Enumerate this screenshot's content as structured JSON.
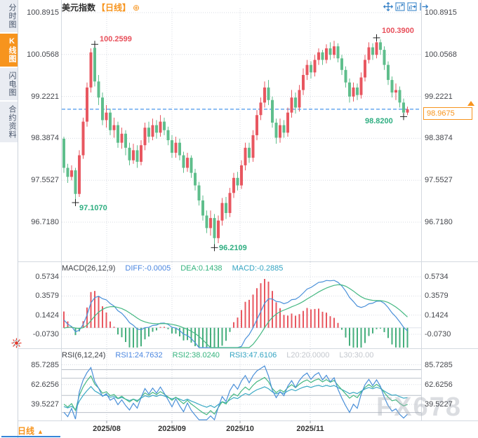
{
  "header": {
    "title": "美元指数",
    "timeframe": "【日线】",
    "add_icon": "⊕"
  },
  "sidebar": {
    "items": [
      {
        "label": "分时图",
        "active": false
      },
      {
        "label": "K线图",
        "active": true
      },
      {
        "label": "闪电图",
        "active": false
      },
      {
        "label": "合约资料",
        "active": false
      }
    ]
  },
  "toolbar": {
    "icons": [
      "crosshair",
      "fit-range",
      "pan-range",
      "go-latest"
    ]
  },
  "price_axis": {
    "labels": [
      "100.8915",
      "100.0568",
      "99.2221",
      "98.3874",
      "97.5527",
      "96.7180"
    ]
  },
  "macd": {
    "title": "MACD(26,12,9)",
    "diff_label": "DIFF:-0.0005",
    "dea_label": "DEA:0.1438",
    "macd_label": "MACD:-0.2885",
    "axis": [
      "0.5734",
      "0.3579",
      "0.1424",
      "-0.0730"
    ]
  },
  "rsi": {
    "title": "RSI(6,12,24)",
    "rsi1_label": "RSI1:24.7632",
    "rsi2_label": "RSI2:38.0240",
    "rsi3_label": "RSI3:47.6106",
    "l20_label": "L20:20.0000",
    "l30_label": "L30:30.00",
    "axis": [
      "85.7285",
      "62.6256",
      "39.5227"
    ]
  },
  "annotations": {
    "high1": "100.2599",
    "high2": "100.3900",
    "pullback_low": "98.8200",
    "low1": "97.1070",
    "low2": "96.2109"
  },
  "last_price": "98.9675",
  "bottom": {
    "timeframe": "日线",
    "dropdown_icon": "▲",
    "dates": [
      "2025/08",
      "2025/09",
      "2025/10",
      "2025/11"
    ]
  },
  "watermark": "FX678",
  "colors": {
    "up": "#e85760",
    "down": "#5fbe8c",
    "accent_orange": "#f7941d",
    "dashed_line": "#1f7ce8",
    "diff_line": "#4a90d9",
    "dea_line": "#45b882",
    "rsi1": "#4a90d9",
    "rsi2": "#45b882",
    "rsi3": "#3aa9c4",
    "macd_bar_pos": "#e85760",
    "macd_bar_neg": "#45ae7c",
    "grid": "#d7dbe3",
    "level_line": "#b9bfc8",
    "marker": "#222222"
  },
  "chart_data": {
    "type": "candlestick",
    "title": "美元指数 日线 (US Dollar Index, Daily)",
    "x_labels": [
      "2025/08",
      "2025/09",
      "2025/10",
      "2025/11"
    ],
    "ylim": [
      96.718,
      100.8915
    ],
    "month_x": [
      152,
      245,
      342,
      442
    ],
    "grid": "dotted",
    "marked_points": {
      "july_low": 97.107,
      "july_high": 100.2599,
      "september_low": 96.2109,
      "november_high": 100.39,
      "recent_low": 98.82,
      "last_close": 98.9675
    },
    "marker_indices": {
      "high1": 8,
      "low1": 3,
      "low2": 39,
      "high2": 81,
      "low3": 88
    },
    "indicators": {
      "macd_params": [
        26,
        12,
        9
      ],
      "diff": -0.0005,
      "dea": 0.1438,
      "macd": -0.2885,
      "macd_axis_ticks": [
        0.5734,
        0.3579,
        0.1424,
        -0.073
      ],
      "rsi_params": [
        6,
        12,
        24
      ],
      "rsi1": 24.7632,
      "rsi2": 38.024,
      "rsi3": 47.6106,
      "l20": 20.0,
      "l30": 30.0,
      "rsi_axis_ticks": [
        85.7285,
        62.6256,
        39.5227
      ],
      "rsi_level_lines": [
        80,
        70,
        50,
        30,
        20
      ]
    },
    "prehistory_closes": [
      99.1,
      98.95,
      98.8,
      98.6,
      98.4,
      98.15,
      97.9,
      97.65,
      97.4,
      97.15,
      96.95,
      96.75,
      96.6,
      96.5,
      96.45,
      96.55,
      96.75,
      97.0,
      97.3,
      97.6,
      97.9,
      98.15,
      98.35,
      98.5,
      98.55,
      98.52,
      98.48,
      98.45,
      98.42,
      98.4
    ],
    "candles": [
      [
        98.38,
        98.42,
        97.7,
        97.8
      ],
      [
        97.8,
        97.88,
        97.5,
        97.62
      ],
      [
        97.62,
        97.85,
        97.55,
        97.75
      ],
      [
        97.75,
        97.8,
        97.107,
        97.28
      ],
      [
        97.28,
        98.15,
        97.22,
        98.05
      ],
      [
        98.05,
        98.8,
        97.98,
        98.72
      ],
      [
        98.72,
        99.5,
        98.62,
        99.4
      ],
      [
        99.4,
        100.18,
        99.3,
        100.1
      ],
      [
        100.19,
        100.2599,
        99.42,
        99.52
      ],
      [
        99.52,
        99.65,
        99.05,
        99.2
      ],
      [
        99.2,
        99.3,
        98.65,
        98.75
      ],
      [
        98.75,
        99.05,
        98.6,
        98.9
      ],
      [
        98.9,
        98.98,
        98.45,
        98.55
      ],
      [
        98.55,
        98.8,
        98.4,
        98.65
      ],
      [
        98.65,
        98.72,
        98.2,
        98.3
      ],
      [
        98.3,
        98.6,
        98.18,
        98.48
      ],
      [
        98.48,
        98.55,
        98.05,
        98.2
      ],
      [
        98.2,
        98.3,
        97.85,
        97.95
      ],
      [
        97.95,
        98.28,
        97.88,
        98.15
      ],
      [
        98.15,
        98.25,
        97.8,
        97.92
      ],
      [
        97.92,
        98.35,
        97.85,
        98.25
      ],
      [
        98.25,
        98.7,
        98.15,
        98.6
      ],
      [
        98.6,
        98.72,
        98.3,
        98.42
      ],
      [
        98.42,
        98.78,
        98.35,
        98.65
      ],
      [
        98.65,
        98.75,
        98.38,
        98.5
      ],
      [
        98.5,
        98.85,
        98.42,
        98.72
      ],
      [
        98.72,
        98.8,
        98.45,
        98.55
      ],
      [
        98.55,
        98.62,
        98.25,
        98.35
      ],
      [
        98.35,
        98.45,
        98.0,
        98.1
      ],
      [
        98.1,
        98.42,
        98.0,
        98.3
      ],
      [
        98.3,
        98.38,
        97.95,
        98.05
      ],
      [
        98.05,
        98.12,
        97.7,
        97.8
      ],
      [
        97.8,
        98.1,
        97.72,
        98.0
      ],
      [
        98.0,
        98.05,
        97.6,
        97.7
      ],
      [
        97.7,
        97.78,
        97.35,
        97.45
      ],
      [
        97.45,
        97.52,
        97.05,
        97.15
      ],
      [
        97.15,
        97.25,
        96.75,
        96.85
      ],
      [
        96.85,
        96.95,
        96.5,
        96.6
      ],
      [
        96.6,
        96.95,
        96.45,
        96.8
      ],
      [
        96.8,
        96.88,
        96.2109,
        96.4
      ],
      [
        96.4,
        96.85,
        96.3,
        96.75
      ],
      [
        96.75,
        97.2,
        96.65,
        97.1
      ],
      [
        97.1,
        97.22,
        96.78,
        96.9
      ],
      [
        96.9,
        97.4,
        96.82,
        97.3
      ],
      [
        97.3,
        97.7,
        97.2,
        97.6
      ],
      [
        97.6,
        97.72,
        97.35,
        97.45
      ],
      [
        97.45,
        97.95,
        97.38,
        97.85
      ],
      [
        97.85,
        98.3,
        97.75,
        98.2
      ],
      [
        98.2,
        98.3,
        97.9,
        98.0
      ],
      [
        98.0,
        98.55,
        97.92,
        98.45
      ],
      [
        98.45,
        98.95,
        98.35,
        98.85
      ],
      [
        98.85,
        99.2,
        98.75,
        99.1
      ],
      [
        99.1,
        99.52,
        99.0,
        99.4
      ],
      [
        99.4,
        99.55,
        99.05,
        99.15
      ],
      [
        99.15,
        99.22,
        98.6,
        98.7
      ],
      [
        98.7,
        98.78,
        98.28,
        98.4
      ],
      [
        98.4,
        98.78,
        98.3,
        98.65
      ],
      [
        98.65,
        98.75,
        98.4,
        98.5
      ],
      [
        98.5,
        99.0,
        98.42,
        98.9
      ],
      [
        98.9,
        99.35,
        98.8,
        99.2
      ],
      [
        99.2,
        99.3,
        98.88,
        99.0
      ],
      [
        99.0,
        99.45,
        98.92,
        99.35
      ],
      [
        99.35,
        99.78,
        99.25,
        99.65
      ],
      [
        99.65,
        99.95,
        99.55,
        99.85
      ],
      [
        99.85,
        99.92,
        99.58,
        99.7
      ],
      [
        99.7,
        100.05,
        99.62,
        99.95
      ],
      [
        99.95,
        100.18,
        99.85,
        100.1
      ],
      [
        100.1,
        100.15,
        99.85,
        99.95
      ],
      [
        99.95,
        100.26,
        99.88,
        100.18
      ],
      [
        100.18,
        100.3,
        99.95,
        100.05
      ],
      [
        100.05,
        100.33,
        99.98,
        100.22
      ],
      [
        100.22,
        100.28,
        99.9,
        99.98
      ],
      [
        99.98,
        100.05,
        99.65,
        99.75
      ],
      [
        99.75,
        99.82,
        99.4,
        99.5
      ],
      [
        99.5,
        99.58,
        99.1,
        99.22
      ],
      [
        99.22,
        99.5,
        99.12,
        99.4
      ],
      [
        99.4,
        99.48,
        99.15,
        99.25
      ],
      [
        99.25,
        99.7,
        99.18,
        99.6
      ],
      [
        99.6,
        100.05,
        99.52,
        99.95
      ],
      [
        99.95,
        100.3,
        99.88,
        100.2
      ],
      [
        100.2,
        100.28,
        99.95,
        100.05
      ],
      [
        100.05,
        100.39,
        99.98,
        100.3
      ],
      [
        100.3,
        100.36,
        100.05,
        100.15
      ],
      [
        100.15,
        100.22,
        99.75,
        99.85
      ],
      [
        99.85,
        99.92,
        99.45,
        99.55
      ],
      [
        99.55,
        99.62,
        99.2,
        99.3
      ],
      [
        99.3,
        99.48,
        99.15,
        99.35
      ],
      [
        99.35,
        99.42,
        99.0,
        99.1
      ],
      [
        99.1,
        99.18,
        98.82,
        98.9
      ],
      [
        98.9,
        99.02,
        98.85,
        98.9675
      ]
    ]
  }
}
